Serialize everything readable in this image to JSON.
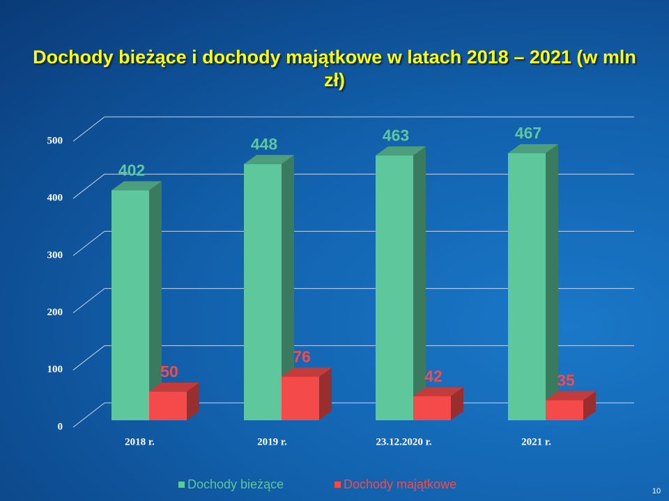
{
  "chart_data": {
    "type": "bar3d",
    "title": "Dochody bieżące i dochody majątkowe w latach 2018 – 2021 (w mln zł)",
    "categories": [
      "2018 r.",
      "2019 r.",
      "23.12.2020 r.",
      "2021 r."
    ],
    "series": [
      {
        "name": "Dochody bieżące",
        "color": "#5ec79b",
        "values": [
          402,
          448,
          463,
          467
        ]
      },
      {
        "name": "Dochody majątkowe",
        "color": "#f54a4a",
        "values": [
          50,
          76,
          42,
          35
        ]
      }
    ],
    "ylim": [
      0,
      500
    ],
    "yticks": [
      0,
      100,
      200,
      300,
      400,
      500
    ],
    "grid": true,
    "legend": "bottom"
  },
  "page_number": "10"
}
